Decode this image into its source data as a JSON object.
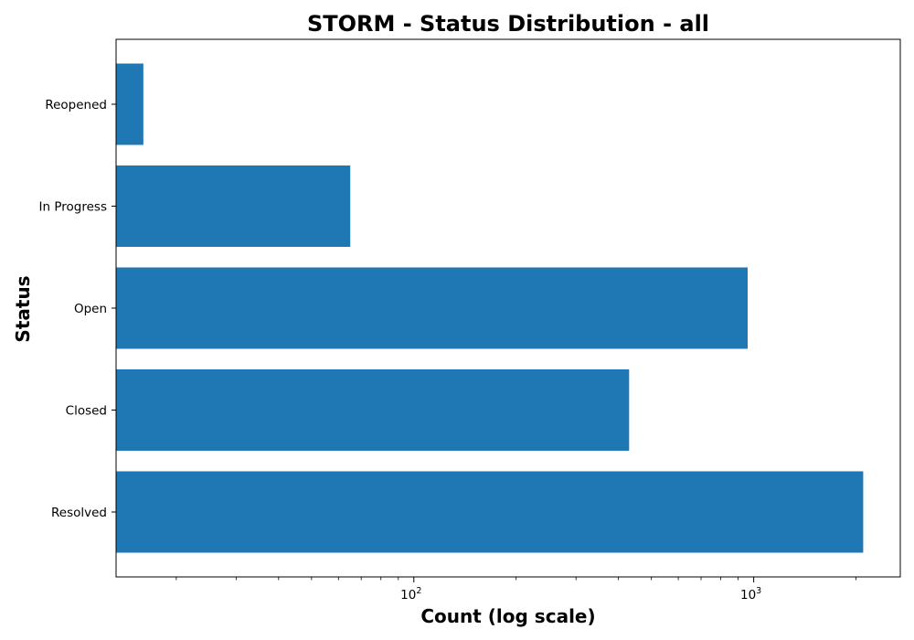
{
  "chart_data": {
    "type": "bar",
    "orientation": "horizontal",
    "title": "STORM - Status Distribution - all",
    "xlabel": "Count (log scale)",
    "ylabel": "Status",
    "x_scale": "log",
    "xlim": [
      13.3,
      2700
    ],
    "x_ticks": [
      {
        "value": 100,
        "base": "10",
        "exp": "2"
      },
      {
        "value": 1000,
        "base": "10",
        "exp": "3"
      }
    ],
    "categories": [
      "Resolved",
      "Closed",
      "Open",
      "In Progress",
      "Reopened"
    ],
    "values": [
      2100,
      430,
      960,
      65,
      16
    ],
    "bar_color": "#1f77b4",
    "grid": false
  }
}
